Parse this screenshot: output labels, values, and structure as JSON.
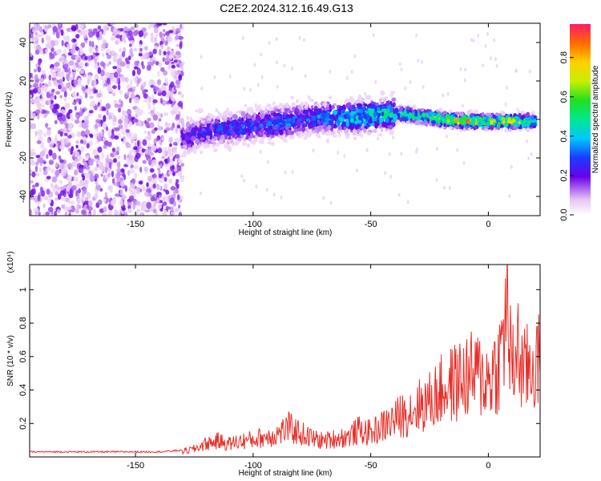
{
  "title": "C2E2.2024.312.16.49.G13",
  "colors": {
    "snr_line": "#e8302a",
    "frame": "#000000"
  },
  "chart_data": [
    {
      "type": "heatmap",
      "xlabel": "Height of straight line (km)",
      "ylabel": "Frequency (Hz)",
      "xlim": [
        -195,
        22
      ],
      "ylim": [
        -50,
        50
      ],
      "xticks": [
        "-150",
        "-100",
        "-50",
        "0"
      ],
      "yticks": [
        "40",
        "20",
        "0",
        "-20",
        "-40"
      ],
      "colorbar": {
        "label": "Normalized spectral amplitude",
        "range": [
          0,
          0.97
        ],
        "ticks": [
          "0.8",
          "0.6",
          "0.4",
          "0.2",
          "0.0"
        ],
        "colormap": "rainbow (purple to red)"
      },
      "ridge": {
        "description": "signal ridge near 0 Hz",
        "x": [
          -130,
          -120,
          -110,
          -100,
          -90,
          -80,
          -70,
          -60,
          -50,
          -40,
          -30,
          -20,
          -10,
          0,
          10,
          20
        ],
        "center_freq": [
          -10,
          -6,
          -5,
          -3,
          -2,
          0,
          1,
          1,
          2,
          3,
          2,
          0,
          -1,
          -1,
          -1,
          -1
        ],
        "peak_amplitude": [
          0.3,
          0.3,
          0.35,
          0.35,
          0.4,
          0.35,
          0.4,
          0.5,
          0.55,
          0.55,
          0.6,
          0.75,
          0.9,
          0.7,
          0.8,
          0.6
        ]
      },
      "noise_region": {
        "x_range": [
          -195,
          -130
        ],
        "freq_range": [
          -50,
          50
        ],
        "amplitude": [
          0.05,
          0.2
        ]
      }
    },
    {
      "type": "line",
      "xlabel": "Height of straight line (km)",
      "ylabel": "SNR (10 * v/v)",
      "y_multiplier": "(x10⁴)",
      "xlim": [
        -195,
        22
      ],
      "ylim": [
        0,
        1.15
      ],
      "xticks": [
        "-150",
        "-100",
        "-50",
        "0"
      ],
      "yticks": [
        "1",
        "0.8",
        "0.6",
        "0.4",
        "0.2"
      ],
      "series": [
        {
          "x": [
            -195,
            -180,
            -160,
            -140,
            -130,
            -125,
            -120,
            -115,
            -110,
            -105,
            -100,
            -95,
            -90,
            -85,
            -80,
            -75,
            -70,
            -65,
            -60,
            -55,
            -50,
            -45,
            -40,
            -35,
            -30,
            -25,
            -20,
            -15,
            -10,
            -5,
            0,
            5,
            8,
            10,
            12,
            15,
            18,
            22
          ],
          "values": [
            0.03,
            0.03,
            0.03,
            0.03,
            0.04,
            0.06,
            0.1,
            0.12,
            0.1,
            0.12,
            0.13,
            0.15,
            0.17,
            0.22,
            0.18,
            0.14,
            0.12,
            0.14,
            0.15,
            0.2,
            0.18,
            0.23,
            0.28,
            0.33,
            0.38,
            0.42,
            0.5,
            0.55,
            0.6,
            0.62,
            0.58,
            0.72,
            1.15,
            0.6,
            0.85,
            0.62,
            0.7,
            0.7
          ]
        }
      ]
    }
  ]
}
